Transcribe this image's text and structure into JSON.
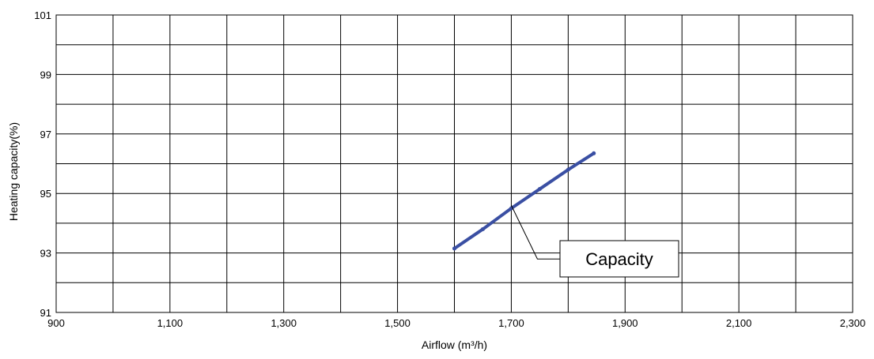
{
  "chart_data": {
    "type": "line",
    "xlabel": "Airflow (m³/h)",
    "ylabel": "Heating capacity(%)",
    "xlim": [
      900,
      2300
    ],
    "ylim": [
      91,
      101
    ],
    "x_ticks": [
      900,
      1100,
      1300,
      1500,
      1700,
      1900,
      2100,
      2300
    ],
    "x_tick_labels": [
      "900",
      "1,100",
      "1,300",
      "1,500",
      "1,700",
      "1,900",
      "2,100",
      "2,300"
    ],
    "y_ticks": [
      91,
      93,
      95,
      97,
      99,
      101
    ],
    "y_tick_labels": [
      "91",
      "93",
      "95",
      "97",
      "99",
      "101"
    ],
    "x_grid_step": 100,
    "y_grid_step": 1,
    "grid": true,
    "series": [
      {
        "name": "Capacity",
        "color": "#3a4fa3",
        "x": [
          1600,
          1650,
          1700,
          1750,
          1800,
          1845
        ],
        "y": [
          93.15,
          93.8,
          94.5,
          95.15,
          95.8,
          96.35
        ]
      }
    ],
    "annotation": {
      "text": "Capacity",
      "points_to": {
        "x": 1700,
        "y": 94.6
      }
    }
  }
}
